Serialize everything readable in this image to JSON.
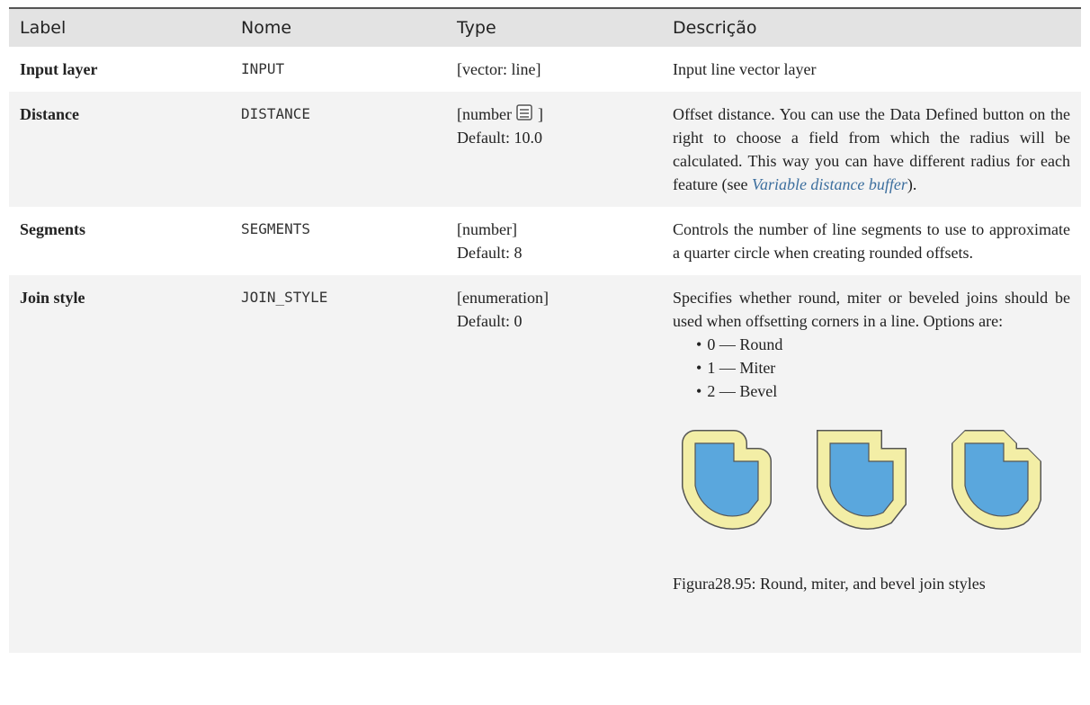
{
  "table": {
    "header": [
      "Label",
      "Nome",
      "Type",
      "Descrição"
    ],
    "rows": [
      {
        "label": "Input layer",
        "name": "INPUT",
        "type": "[vector: line]",
        "description": "Input line vector layer"
      },
      {
        "label": "Distance",
        "name": "DISTANCE",
        "type": [
          "[number",
          "]"
        ],
        "default": "Default: 10.0",
        "description": [
          "Offset distance.  You can use the Data Defined button on the right to choose a field from which the radius will be calculated. This way you can have different radius for each feature (see ",
          "Variable distance buffer",
          ")."
        ]
      },
      {
        "label": "Segments",
        "name": "SEGMENTS",
        "type": "[number]",
        "default": "Default: 8",
        "description": "Controls the number of line segments to use to approximate a quarter circle when creating rounded offsets."
      },
      {
        "label": "Join style",
        "name": "JOIN_STYLE",
        "type": "[enumeration]",
        "default": "Default: 0",
        "description": "Specifies whether round, miter or beveled joins should be used when offsetting corners in a line. Options are:",
        "options": [
          "0 — Round",
          "1 — Miter",
          "2 — Bevel"
        ],
        "caption": "Figura28.95: Round, miter, and bevel join styles"
      }
    ]
  }
}
